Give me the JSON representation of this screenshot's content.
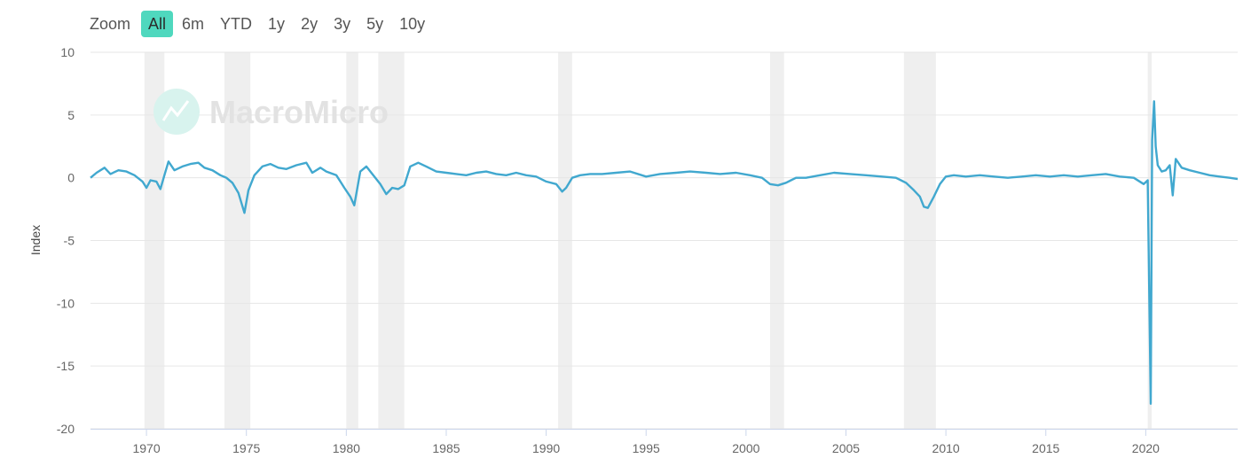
{
  "zoom": {
    "label": "Zoom",
    "options": [
      "All",
      "6m",
      "YTD",
      "1y",
      "2y",
      "3y",
      "5y",
      "10y"
    ],
    "active": "All",
    "active_color": "#4fd8be"
  },
  "watermark": {
    "text": "MacroMicro",
    "icon": "macromicro-logo-icon"
  },
  "chart_data": {
    "type": "line",
    "title": "",
    "xlabel": "",
    "ylabel": "Index",
    "xlim": [
      1967.2,
      2024.6
    ],
    "ylim": [
      -20,
      10
    ],
    "y_ticks": [
      10,
      5,
      0,
      -5,
      -10,
      -15,
      -20
    ],
    "x_ticks": [
      1970,
      1975,
      1980,
      1985,
      1990,
      1995,
      2000,
      2005,
      2010,
      2015,
      2020
    ],
    "grid": true,
    "line_color": "#41a8cf",
    "recession_color": "#efefef",
    "recessions": [
      [
        1969.9,
        1970.9
      ],
      [
        1973.9,
        1975.2
      ],
      [
        1980.0,
        1980.6
      ],
      [
        1981.6,
        1982.9
      ],
      [
        1990.6,
        1991.3
      ],
      [
        2001.2,
        2001.9
      ],
      [
        2007.9,
        2009.5
      ],
      [
        2020.1,
        2020.3
      ]
    ],
    "series": [
      {
        "x": [
          1967.2,
          1967.5,
          1967.9,
          1968.2,
          1968.6,
          1969.0,
          1969.4,
          1969.8,
          1970.0,
          1970.2,
          1970.5,
          1970.7,
          1970.9,
          1971.1,
          1971.4,
          1971.8,
          1972.2,
          1972.6,
          1972.9,
          1973.3,
          1973.7,
          1974.0,
          1974.3,
          1974.6,
          1974.9,
          1975.1,
          1975.4,
          1975.8,
          1976.2,
          1976.6,
          1977.0,
          1977.5,
          1978.0,
          1978.3,
          1978.7,
          1979.0,
          1979.5,
          1979.9,
          1980.2,
          1980.4,
          1980.7,
          1981.0,
          1981.3,
          1981.7,
          1982.0,
          1982.3,
          1982.6,
          1982.9,
          1983.2,
          1983.6,
          1984.0,
          1984.5,
          1985.0,
          1985.5,
          1986.0,
          1986.5,
          1987.0,
          1987.5,
          1988.0,
          1988.5,
          1989.0,
          1989.5,
          1990.0,
          1990.5,
          1990.8,
          1991.0,
          1991.3,
          1991.7,
          1992.2,
          1992.8,
          1993.5,
          1994.2,
          1995.0,
          1995.7,
          1996.5,
          1997.2,
          1998.0,
          1998.7,
          1999.5,
          2000.2,
          2000.8,
          2001.2,
          2001.6,
          2002.0,
          2002.5,
          2003.0,
          2003.7,
          2004.4,
          2005.2,
          2006.0,
          2006.8,
          2007.5,
          2008.0,
          2008.4,
          2008.7,
          2008.9,
          2009.1,
          2009.4,
          2009.7,
          2010.0,
          2010.4,
          2011.0,
          2011.7,
          2012.4,
          2013.1,
          2013.8,
          2014.5,
          2015.2,
          2015.9,
          2016.6,
          2017.3,
          2018.0,
          2018.7,
          2019.4,
          2019.9,
          2020.1,
          2020.25,
          2020.32,
          2020.42,
          2020.5,
          2020.6,
          2020.8,
          2021.0,
          2021.2,
          2021.35,
          2021.5,
          2021.8,
          2022.2,
          2022.7,
          2023.2,
          2023.7,
          2024.2,
          2024.6
        ],
        "y": [
          0.0,
          0.4,
          0.8,
          0.3,
          0.6,
          0.5,
          0.2,
          -0.3,
          -0.8,
          -0.2,
          -0.3,
          -0.9,
          0.2,
          1.3,
          0.6,
          0.9,
          1.1,
          1.2,
          0.8,
          0.6,
          0.2,
          0.0,
          -0.4,
          -1.2,
          -2.8,
          -1.0,
          0.2,
          0.9,
          1.1,
          0.8,
          0.7,
          1.0,
          1.2,
          0.4,
          0.8,
          0.5,
          0.2,
          -0.8,
          -1.5,
          -2.2,
          0.5,
          0.9,
          0.3,
          -0.5,
          -1.3,
          -0.8,
          -0.9,
          -0.6,
          0.9,
          1.2,
          0.9,
          0.5,
          0.4,
          0.3,
          0.2,
          0.4,
          0.5,
          0.3,
          0.2,
          0.4,
          0.2,
          0.1,
          -0.3,
          -0.5,
          -1.1,
          -0.8,
          0.0,
          0.2,
          0.3,
          0.3,
          0.4,
          0.5,
          0.1,
          0.3,
          0.4,
          0.5,
          0.4,
          0.3,
          0.4,
          0.2,
          0.0,
          -0.5,
          -0.6,
          -0.4,
          0.0,
          0.0,
          0.2,
          0.4,
          0.3,
          0.2,
          0.1,
          0.0,
          -0.4,
          -1.0,
          -1.5,
          -2.3,
          -2.4,
          -1.5,
          -0.5,
          0.1,
          0.2,
          0.1,
          0.2,
          0.1,
          0.0,
          0.1,
          0.2,
          0.1,
          0.2,
          0.1,
          0.2,
          0.3,
          0.1,
          0.0,
          -0.5,
          -0.2,
          -18.0,
          3.0,
          6.1,
          2.5,
          1.0,
          0.5,
          0.6,
          1.0,
          -1.4,
          1.5,
          0.8,
          0.6,
          0.4,
          0.2,
          0.1,
          0.0,
          -0.1
        ]
      }
    ]
  }
}
